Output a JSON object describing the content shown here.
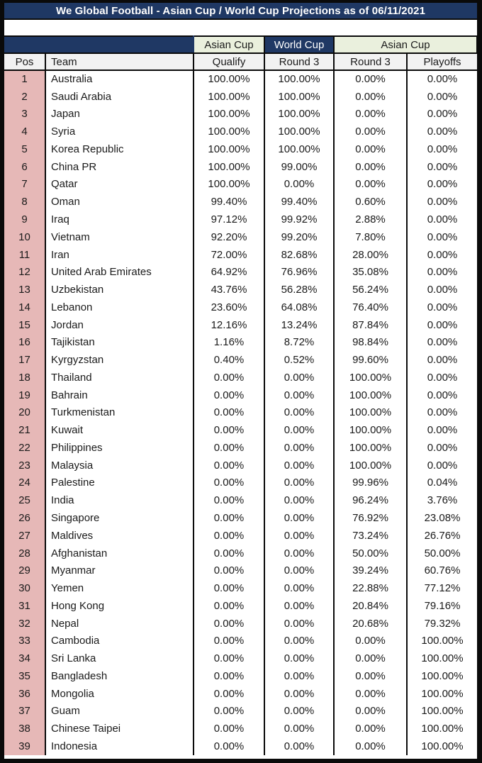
{
  "title": "We Global Football - Asian Cup / World Cup Projections as of 06/11/2021",
  "colors": {
    "navy": "#1F3864",
    "pos_pink": "#E6B8B7",
    "group_green": "#EAF0DD",
    "header_gray": "#F2F2F2",
    "border_black": "#0a0a0a",
    "title_text": "#ffffff"
  },
  "table": {
    "group_headers": {
      "asian_cup_qualify": "Asian Cup",
      "world_cup": "World Cup",
      "asian_cup_rounds": "Asian Cup"
    },
    "columns": {
      "pos": "Pos",
      "team": "Team",
      "qualify": "Qualify",
      "wc_round3": "Round 3",
      "ac_round3": "Round 3",
      "playoffs": "Playoffs"
    },
    "rows": [
      [
        "1",
        "Australia",
        "100.00%",
        "100.00%",
        "0.00%",
        "0.00%"
      ],
      [
        "2",
        "Saudi Arabia",
        "100.00%",
        "100.00%",
        "0.00%",
        "0.00%"
      ],
      [
        "3",
        "Japan",
        "100.00%",
        "100.00%",
        "0.00%",
        "0.00%"
      ],
      [
        "4",
        "Syria",
        "100.00%",
        "100.00%",
        "0.00%",
        "0.00%"
      ],
      [
        "5",
        "Korea Republic",
        "100.00%",
        "100.00%",
        "0.00%",
        "0.00%"
      ],
      [
        "6",
        "China PR",
        "100.00%",
        "99.00%",
        "0.00%",
        "0.00%"
      ],
      [
        "7",
        "Qatar",
        "100.00%",
        "0.00%",
        "0.00%",
        "0.00%"
      ],
      [
        "8",
        "Oman",
        "99.40%",
        "99.40%",
        "0.60%",
        "0.00%"
      ],
      [
        "9",
        "Iraq",
        "97.12%",
        "99.92%",
        "2.88%",
        "0.00%"
      ],
      [
        "10",
        "Vietnam",
        "92.20%",
        "99.20%",
        "7.80%",
        "0.00%"
      ],
      [
        "11",
        "Iran",
        "72.00%",
        "82.68%",
        "28.00%",
        "0.00%"
      ],
      [
        "12",
        "United Arab Emirates",
        "64.92%",
        "76.96%",
        "35.08%",
        "0.00%"
      ],
      [
        "13",
        "Uzbekistan",
        "43.76%",
        "56.28%",
        "56.24%",
        "0.00%"
      ],
      [
        "14",
        "Lebanon",
        "23.60%",
        "64.08%",
        "76.40%",
        "0.00%"
      ],
      [
        "15",
        "Jordan",
        "12.16%",
        "13.24%",
        "87.84%",
        "0.00%"
      ],
      [
        "16",
        "Tajikistan",
        "1.16%",
        "8.72%",
        "98.84%",
        "0.00%"
      ],
      [
        "17",
        "Kyrgyzstan",
        "0.40%",
        "0.52%",
        "99.60%",
        "0.00%"
      ],
      [
        "18",
        "Thailand",
        "0.00%",
        "0.00%",
        "100.00%",
        "0.00%"
      ],
      [
        "19",
        "Bahrain",
        "0.00%",
        "0.00%",
        "100.00%",
        "0.00%"
      ],
      [
        "20",
        "Turkmenistan",
        "0.00%",
        "0.00%",
        "100.00%",
        "0.00%"
      ],
      [
        "21",
        "Kuwait",
        "0.00%",
        "0.00%",
        "100.00%",
        "0.00%"
      ],
      [
        "22",
        "Philippines",
        "0.00%",
        "0.00%",
        "100.00%",
        "0.00%"
      ],
      [
        "23",
        "Malaysia",
        "0.00%",
        "0.00%",
        "100.00%",
        "0.00%"
      ],
      [
        "24",
        "Palestine",
        "0.00%",
        "0.00%",
        "99.96%",
        "0.04%"
      ],
      [
        "25",
        "India",
        "0.00%",
        "0.00%",
        "96.24%",
        "3.76%"
      ],
      [
        "26",
        "Singapore",
        "0.00%",
        "0.00%",
        "76.92%",
        "23.08%"
      ],
      [
        "27",
        "Maldives",
        "0.00%",
        "0.00%",
        "73.24%",
        "26.76%"
      ],
      [
        "28",
        "Afghanistan",
        "0.00%",
        "0.00%",
        "50.00%",
        "50.00%"
      ],
      [
        "29",
        "Myanmar",
        "0.00%",
        "0.00%",
        "39.24%",
        "60.76%"
      ],
      [
        "30",
        "Yemen",
        "0.00%",
        "0.00%",
        "22.88%",
        "77.12%"
      ],
      [
        "31",
        "Hong Kong",
        "0.00%",
        "0.00%",
        "20.84%",
        "79.16%"
      ],
      [
        "32",
        "Nepal",
        "0.00%",
        "0.00%",
        "20.68%",
        "79.32%"
      ],
      [
        "33",
        "Cambodia",
        "0.00%",
        "0.00%",
        "0.00%",
        "100.00%"
      ],
      [
        "34",
        "Sri Lanka",
        "0.00%",
        "0.00%",
        "0.00%",
        "100.00%"
      ],
      [
        "35",
        "Bangladesh",
        "0.00%",
        "0.00%",
        "0.00%",
        "100.00%"
      ],
      [
        "36",
        "Mongolia",
        "0.00%",
        "0.00%",
        "0.00%",
        "100.00%"
      ],
      [
        "37",
        "Guam",
        "0.00%",
        "0.00%",
        "0.00%",
        "100.00%"
      ],
      [
        "38",
        "Chinese Taipei",
        "0.00%",
        "0.00%",
        "0.00%",
        "100.00%"
      ],
      [
        "39",
        "Indonesia",
        "0.00%",
        "0.00%",
        "0.00%",
        "100.00%"
      ]
    ]
  }
}
